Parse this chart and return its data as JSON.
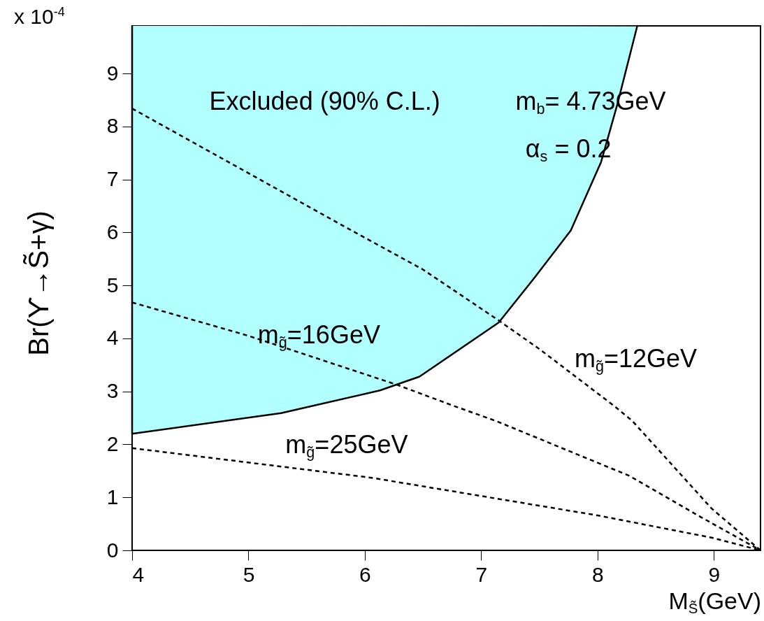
{
  "chart_data": {
    "type": "line",
    "xlabel": "M$_{S̃}$(GeV)",
    "ylabel": "Br(ϒ→S̃+γ)",
    "xlim": [
      4,
      9.4
    ],
    "ylim": [
      0,
      9.9
    ],
    "xticks": [
      4,
      5,
      6,
      7,
      8,
      9
    ],
    "yticks": [
      0,
      1,
      2,
      3,
      4,
      5,
      6,
      7,
      8,
      9
    ],
    "annotations": [
      "x 10$^{-4}$",
      "m$_{b}$= 4.73GeV",
      "α$_{s}$ = 0.2"
    ],
    "series": [
      {
        "type": "area",
        "name": "Excluded (90% C.L.)",
        "color": "#b2ffff",
        "x": [
          4,
          4,
          5.28,
          6.13,
          6.47,
          7.15,
          7.47,
          7.77,
          8.03,
          8.17,
          8.34
        ],
        "values": [
          9.9,
          2.2,
          2.59,
          3.02,
          3.28,
          4.3,
          5.18,
          6.04,
          7.33,
          8.42,
          9.89
        ]
      },
      {
        "name": "m$_{g̃}$=12GeV",
        "color": "#000000",
        "line_style": "dashed",
        "x": [
          4,
          5,
          5.81,
          6.5,
          7.13,
          7.5,
          8.14,
          8.3,
          8.98,
          9.4
        ],
        "values": [
          8.34,
          7.12,
          6.13,
          5.3,
          4.37,
          3.8,
          2.73,
          2.44,
          0.79,
          0
        ]
      },
      {
        "name": "m$_{g̃}$=16GeV",
        "color": "#000000",
        "line_style": "dashed",
        "x": [
          4,
          5,
          6.27,
          6.76,
          7.13,
          8.27,
          8.87,
          9.4
        ],
        "values": [
          4.68,
          4.05,
          3.13,
          2.73,
          2.44,
          1.41,
          0.65,
          0
        ]
      },
      {
        "name": "m$_{g̃}$=25GeV",
        "color": "#000000",
        "line_style": "dashed",
        "x": [
          4,
          6.06,
          8,
          8.98,
          9.4
        ],
        "values": [
          1.93,
          1.37,
          0.66,
          0.24,
          0
        ]
      }
    ]
  }
}
